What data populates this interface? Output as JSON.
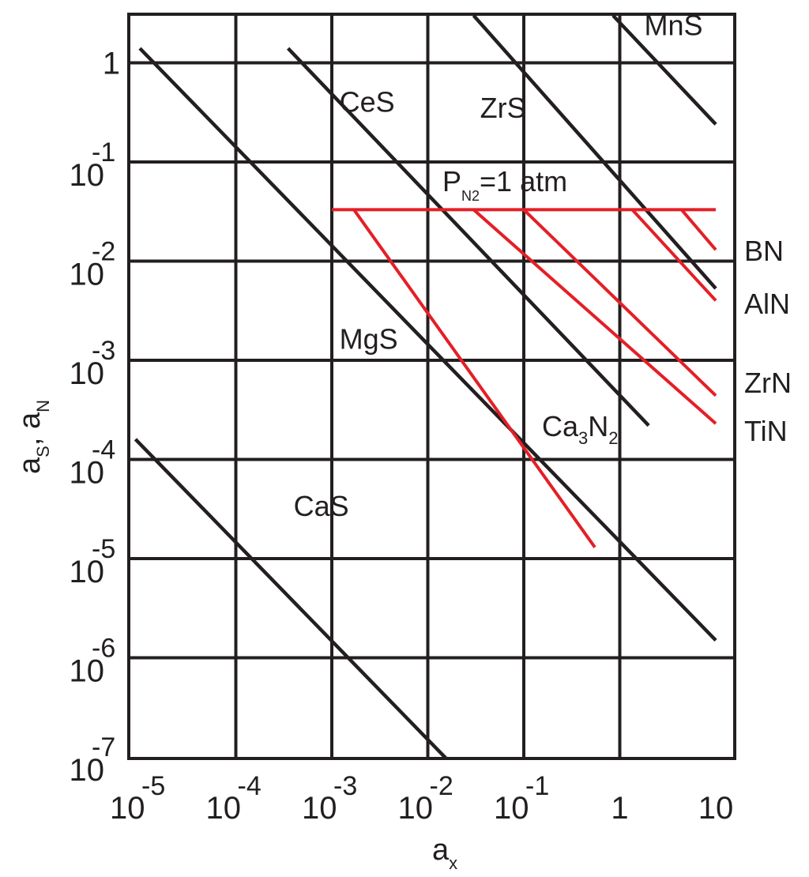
{
  "chart_data": {
    "type": "line",
    "xlabel": {
      "main": "a",
      "sub": "x"
    },
    "ylabel": {
      "main_s": "a",
      "sub_s": "S",
      "sep": ", ",
      "main_n": "a",
      "sub_n": "N"
    },
    "xscale": "log",
    "yscale": "log",
    "xlim": [
      1e-05,
      10
    ],
    "ylim": [
      1e-07,
      3
    ],
    "grid": true,
    "legend": "none",
    "x_ticks": [
      {
        "base": "10",
        "exp": "-5"
      },
      {
        "base": "10",
        "exp": "-4"
      },
      {
        "base": "10",
        "exp": "-3"
      },
      {
        "base": "10",
        "exp": "-2"
      },
      {
        "base": "10",
        "exp": "-1"
      },
      {
        "base": "1",
        "exp": ""
      },
      {
        "base": "10",
        "exp": ""
      }
    ],
    "y_ticks": [
      {
        "base": "1",
        "exp": ""
      },
      {
        "base": "10",
        "exp": "-1"
      },
      {
        "base": "10",
        "exp": "-2"
      },
      {
        "base": "10",
        "exp": "-3"
      },
      {
        "base": "10",
        "exp": "-4"
      },
      {
        "base": "10",
        "exp": "-5"
      },
      {
        "base": "10",
        "exp": "-6"
      },
      {
        "base": "10",
        "exp": "-7"
      }
    ],
    "pressure_label": {
      "p": "P",
      "sub": "N2",
      "rest": "=1 atm"
    },
    "sulfide_series": [
      {
        "name": "CaS",
        "color": "#231f20",
        "points": [
          [
            9e-06,
            0.00016
          ],
          [
            0.02,
            7.5e-08
          ]
        ]
      },
      {
        "name": "MgS",
        "color": "#231f20",
        "points": [
          [
            1e-05,
            1.4
          ],
          [
            10,
            1.5e-06
          ]
        ]
      },
      {
        "name": "CeS",
        "color": "#231f20",
        "points": [
          [
            0.00035,
            1.4
          ],
          [
            2,
            0.00022
          ]
        ]
      },
      {
        "name": "ZrS",
        "color": "#231f20",
        "points": [
          [
            0.03,
            3
          ],
          [
            10,
            0.0053
          ]
        ]
      },
      {
        "name": "MnS",
        "color": "#231f20",
        "points": [
          [
            0.85,
            3
          ],
          [
            10,
            0.24
          ]
        ]
      }
    ],
    "sulfide_labels": [
      {
        "name": "CaS",
        "at": [
          0.0004,
          2.7e-05
        ]
      },
      {
        "name": "MgS",
        "at": [
          0.0012,
          0.0013
        ]
      },
      {
        "name": "CeS",
        "at": [
          0.0012,
          0.32
        ]
      },
      {
        "name": "ZrS",
        "at": [
          0.035,
          0.28
        ]
      },
      {
        "name": "MnS",
        "at": [
          1.8,
          1.9
        ]
      }
    ],
    "pressure_line": {
      "color": "#e41f26",
      "y": 0.033,
      "x_range": [
        0.001,
        10
      ]
    },
    "nitride_series": [
      {
        "name": "Ca3N2",
        "color": "#e41f26",
        "points": [
          [
            0.0017,
            0.033
          ],
          [
            0.55,
            1.3e-05
          ]
        ]
      },
      {
        "name": "TiN",
        "color": "#e41f26",
        "points": [
          [
            0.03,
            0.033
          ],
          [
            10,
            0.00023
          ]
        ]
      },
      {
        "name": "ZrN",
        "color": "#e41f26",
        "points": [
          [
            0.1,
            0.033
          ],
          [
            10,
            0.00044
          ]
        ]
      },
      {
        "name": "AlN",
        "color": "#e41f26",
        "points": [
          [
            1.35,
            0.033
          ],
          [
            10,
            0.004
          ]
        ]
      },
      {
        "name": "BN",
        "color": "#e41f26",
        "points": [
          [
            4.4,
            0.033
          ],
          [
            10,
            0.013
          ]
        ]
      }
    ],
    "nitride_labels": [
      {
        "name": "BN",
        "main": "BN",
        "sub": "",
        "tail": ""
      },
      {
        "name": "AlN",
        "main": "AlN",
        "sub": "",
        "tail": ""
      },
      {
        "name": "ZrN",
        "main": "ZrN",
        "sub": "",
        "tail": ""
      },
      {
        "name": "TiN",
        "main": "TiN",
        "sub": "",
        "tail": ""
      },
      {
        "name": "Ca3N2",
        "main": "Ca",
        "sub": "3",
        "mid": "N",
        "sub2": "2"
      }
    ]
  }
}
